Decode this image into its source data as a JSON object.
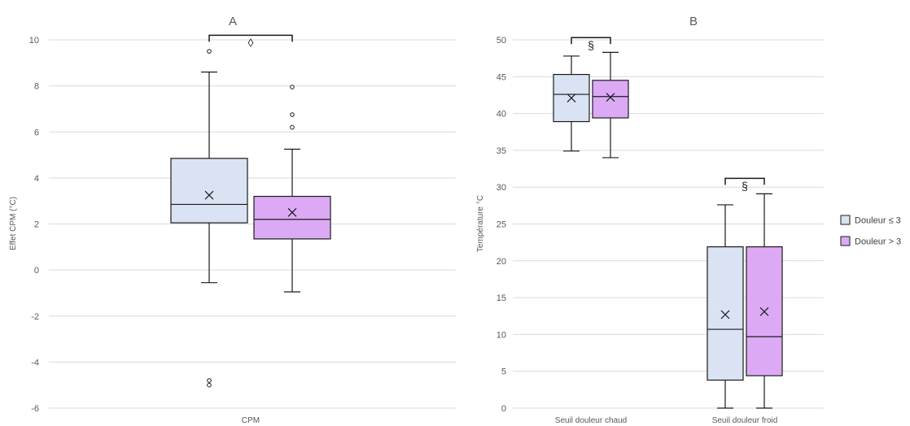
{
  "legend": {
    "position": "right",
    "items": [
      {
        "label": "Douleur ≤ 3",
        "color": "#dae3f3"
      },
      {
        "label": "Douleur > 3",
        "color": "#dcaaf5"
      }
    ]
  },
  "colors": {
    "stroke": "#1a1a1a",
    "grid": "#d9d9d9",
    "axis_text": "#595959",
    "title_text": "#595959"
  },
  "chart_data": [
    {
      "type": "box",
      "title": "A",
      "ylabel": "Effet CPM (°C)",
      "xlabel": "",
      "ylim": [
        -6,
        10
      ],
      "yticks": [
        -6,
        -4,
        -2,
        0,
        2,
        4,
        6,
        8,
        10
      ],
      "grid": true,
      "categories": [
        "CPM"
      ],
      "series": [
        {
          "name": "Douleur ≤ 3",
          "boxes": [
            {
              "category": "CPM",
              "min": -0.55,
              "q1": 2.05,
              "median": 2.85,
              "q3": 4.85,
              "max": 8.6,
              "mean": 3.25,
              "outliers": [
                9.5,
                -4.8,
                -5.0
              ]
            }
          ]
        },
        {
          "name": "Douleur > 3",
          "boxes": [
            {
              "category": "CPM",
              "min": -0.95,
              "q1": 1.35,
              "median": 2.2,
              "q3": 3.2,
              "max": 5.25,
              "mean": 2.5,
              "outliers": [
                7.95,
                6.75,
                6.2
              ]
            }
          ]
        }
      ],
      "annotations": [
        {
          "category": "CPM",
          "level": 10.2,
          "symbol": "◊"
        }
      ]
    },
    {
      "type": "box",
      "title": "B",
      "ylabel": "Température °C",
      "xlabel": "",
      "ylim": [
        0,
        50
      ],
      "yticks": [
        0,
        5,
        10,
        15,
        20,
        25,
        30,
        35,
        40,
        45,
        50
      ],
      "grid": true,
      "categories": [
        "Seuil douleur chaud",
        "Seuil douleur froid"
      ],
      "series": [
        {
          "name": "Douleur ≤ 3",
          "boxes": [
            {
              "category": "Seuil douleur chaud",
              "min": 34.9,
              "q1": 38.9,
              "median": 42.6,
              "q3": 45.3,
              "max": 47.8,
              "mean": 42.1,
              "outliers": []
            },
            {
              "category": "Seuil douleur froid",
              "min": 0,
              "q1": 3.8,
              "median": 10.7,
              "q3": 21.9,
              "max": 27.6,
              "mean": 12.7,
              "outliers": []
            }
          ]
        },
        {
          "name": "Douleur > 3",
          "boxes": [
            {
              "category": "Seuil douleur chaud",
              "min": 34.0,
              "q1": 39.4,
              "median": 42.3,
              "q3": 44.5,
              "max": 48.3,
              "mean": 42.2,
              "outliers": []
            },
            {
              "category": "Seuil douleur froid",
              "min": 0,
              "q1": 4.4,
              "median": 9.7,
              "q3": 21.9,
              "max": 29.1,
              "mean": 13.1,
              "outliers": []
            }
          ]
        }
      ],
      "annotations": [
        {
          "category": "Seuil douleur chaud",
          "level": 50.3,
          "symbol": "§"
        },
        {
          "category": "Seuil douleur froid",
          "level": 31.2,
          "symbol": "§"
        }
      ]
    }
  ]
}
